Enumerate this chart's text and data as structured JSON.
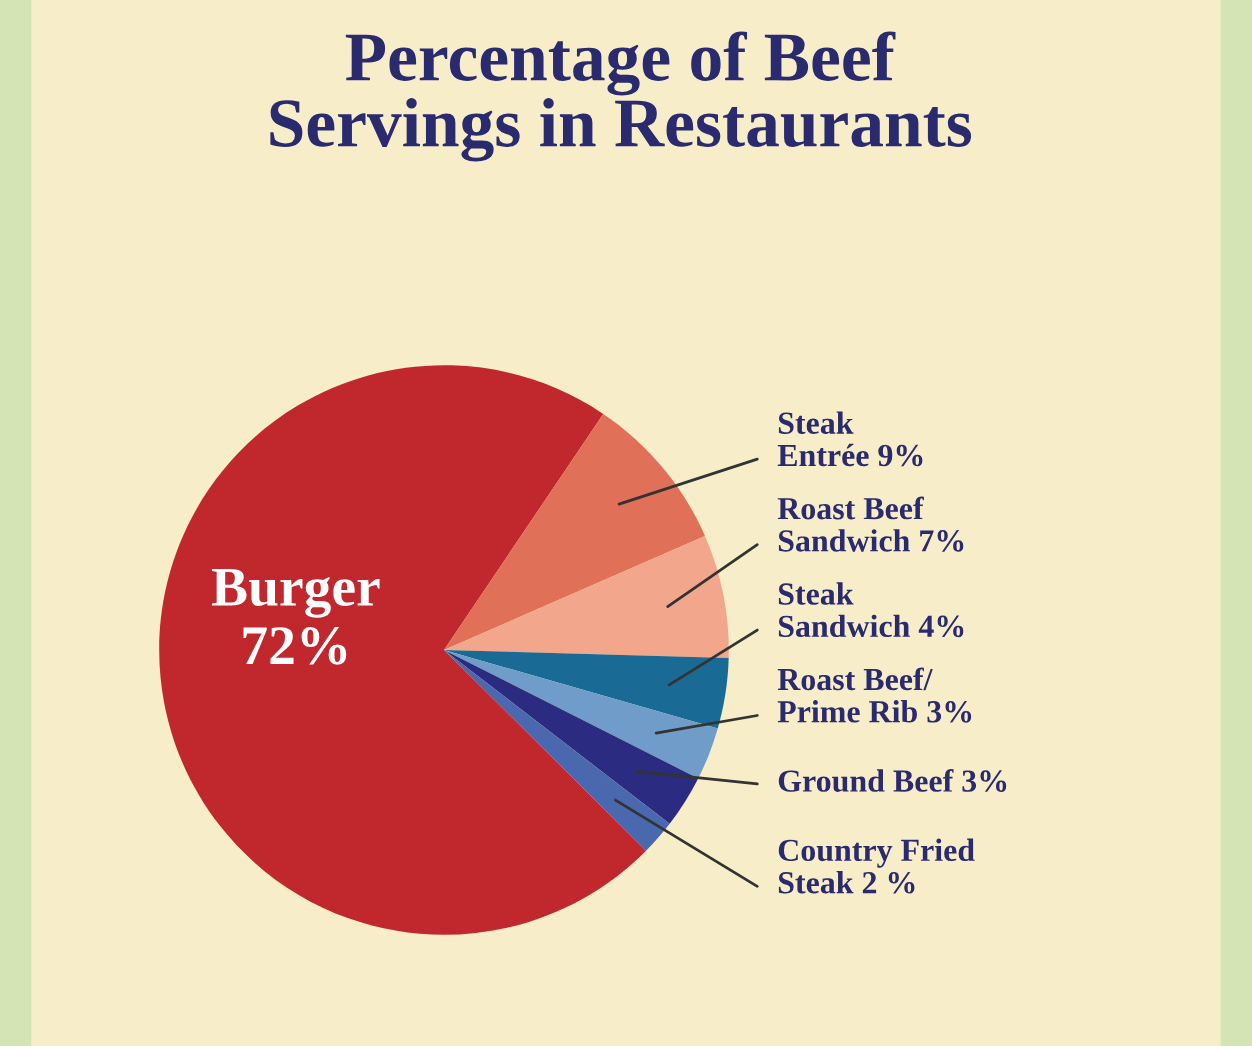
{
  "chart_data": {
    "type": "pie",
    "title": "Percentage of Beef\nServings in Restaurants",
    "categories": [
      "Burger",
      "Steak\nEntrée",
      "Roast Beef\nSandwich",
      "Steak\nSandwich",
      "Roast Beef/\nPrime Rib",
      "Ground Beef",
      "Country Fried\nSteak"
    ],
    "values": [
      72,
      9,
      7,
      4,
      3,
      3,
      2
    ],
    "colors": [
      "#c0282e",
      "#e07058",
      "#f2a68c",
      "#1a6a96",
      "#6f9cc8",
      "#2b2b82",
      "#4a68ae"
    ],
    "value_labels": [
      "72%",
      "9%",
      "7%",
      "4%",
      "3%",
      "3%",
      "2 %"
    ],
    "data_labels": true,
    "legend": false
  }
}
